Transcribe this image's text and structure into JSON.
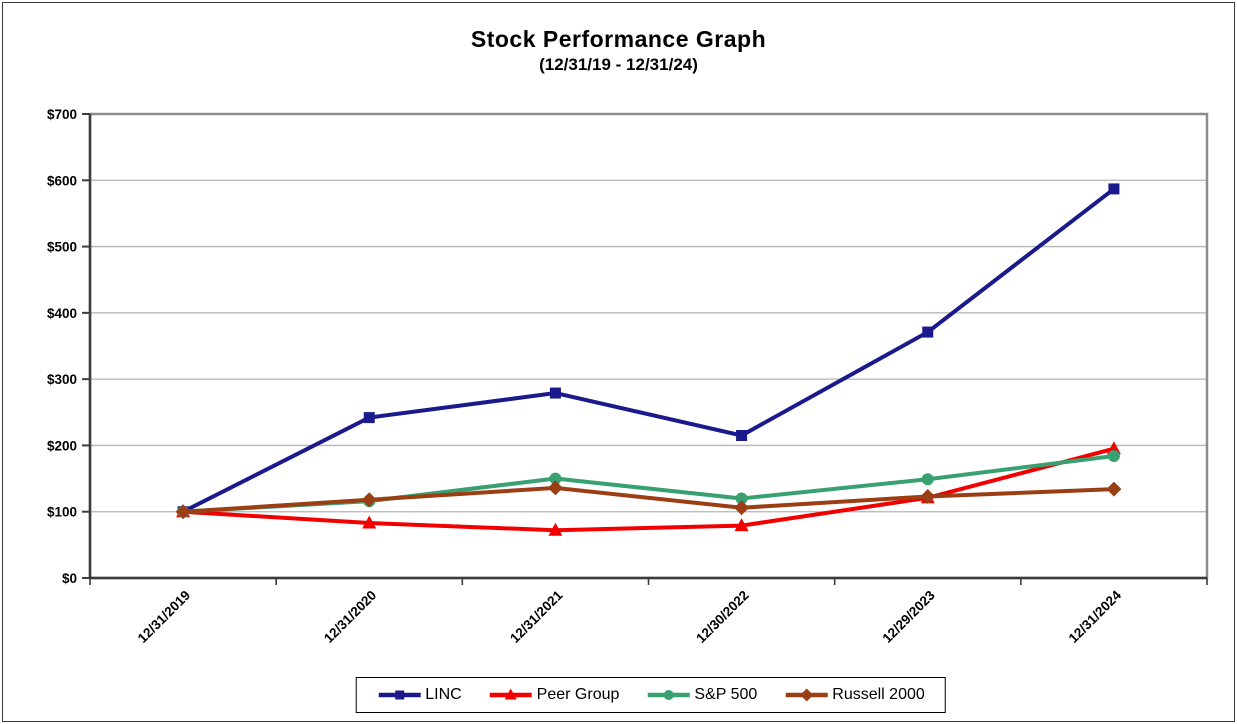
{
  "page": {
    "title": "Stock Performance Graph",
    "subtitle": "(12/31/19 - 12/31/24)"
  },
  "chart_data": {
    "type": "line",
    "title": "Stock Performance Graph",
    "subtitle": "(12/31/19 - 12/31/24)",
    "categories": [
      "12/31/2019",
      "12/31/2020",
      "12/31/2021",
      "12/30/2022",
      "12/29/2023",
      "12/31/2024"
    ],
    "series": [
      {
        "name": "LINC",
        "color": "#1A1A8C",
        "marker": "square",
        "values": [
          100,
          242,
          279,
          215,
          371,
          587
        ]
      },
      {
        "name": "Peer Group",
        "color": "#F20000",
        "marker": "triangle",
        "values": [
          100,
          83,
          72,
          79,
          121,
          195
        ]
      },
      {
        "name": "S&P 500",
        "color": "#38A071",
        "marker": "circle",
        "values": [
          100,
          116,
          150,
          120,
          149,
          184
        ]
      },
      {
        "name": "Russell 2000",
        "color": "#9C3E14",
        "marker": "diamond",
        "values": [
          100,
          118,
          136,
          106,
          123,
          134
        ]
      }
    ],
    "ylim": [
      0,
      700
    ],
    "ytick_step": 100,
    "ytick_labels": [
      "$0",
      "$100",
      "$200",
      "$300",
      "$400",
      "$500",
      "$600",
      "$700"
    ],
    "xlabel": "",
    "ylabel": "",
    "grid": "horizontal",
    "legend_position": "bottom",
    "colors": {
      "plot_border": "#8c8c8c",
      "axis": "#3c3c3c",
      "gridline": "#b4b4b4",
      "text": "#000000",
      "background": "#ffffff"
    }
  }
}
